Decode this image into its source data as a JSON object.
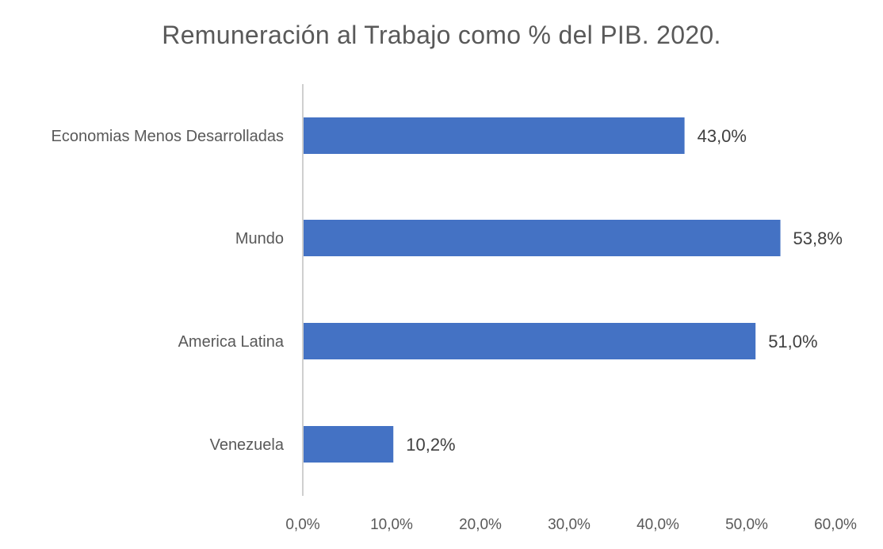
{
  "chart_data": {
    "type": "bar",
    "orientation": "horizontal",
    "title": "Remuneración al Trabajo como % del PIB. 2020.",
    "xlabel": "",
    "ylabel": "",
    "categories": [
      "Economias Menos Desarrolladas",
      "Mundo",
      "America Latina",
      "Venezuela"
    ],
    "values": [
      43.0,
      53.8,
      51.0,
      10.2
    ],
    "data_labels": [
      "43,0%",
      "53,8%",
      "51,0%",
      "10,2%"
    ],
    "xlim": [
      0,
      60
    ],
    "xticks": [
      0,
      10,
      20,
      30,
      40,
      50,
      60
    ],
    "xtick_labels": [
      "0,0%",
      "10,0%",
      "20,0%",
      "30,0%",
      "40,0%",
      "50,0%",
      "60,0%"
    ],
    "grid": false,
    "legend": "none",
    "bar_color": "#4472C4"
  }
}
